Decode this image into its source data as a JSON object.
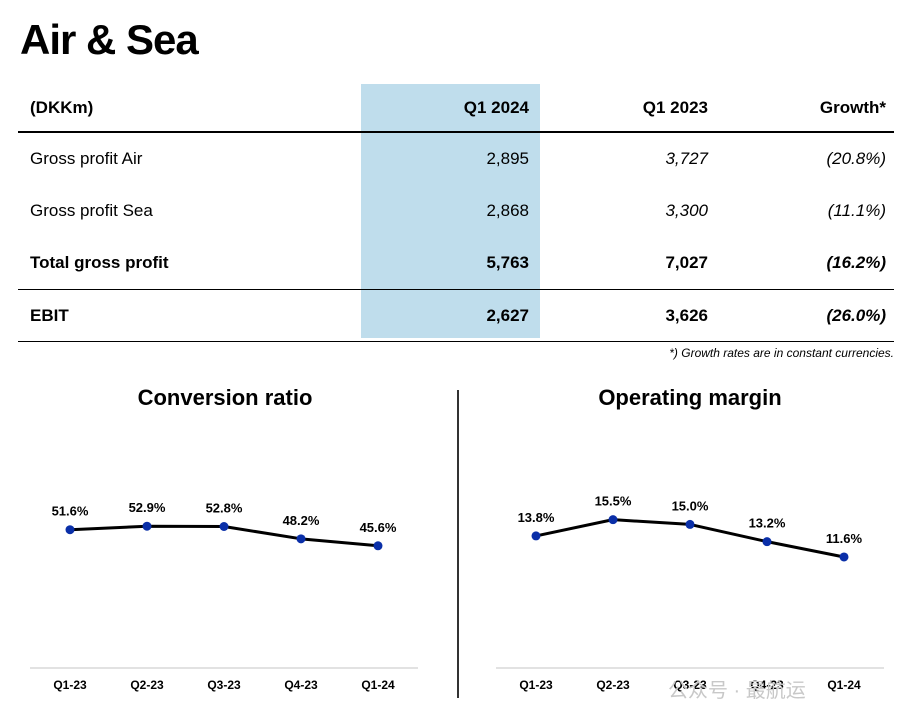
{
  "title": "Air & Sea",
  "table": {
    "headers": [
      "(DKKm)",
      "Q1 2024",
      "Q1 2023",
      "Growth*"
    ],
    "rows": [
      {
        "label": "Gross profit Air",
        "q1_2024": "2,895",
        "q1_2023": "3,727",
        "growth": "(20.8%)"
      },
      {
        "label": "Gross profit Sea",
        "q1_2024": "2,868",
        "q1_2023": "3,300",
        "growth": "(11.1%)"
      },
      {
        "label": "Total gross profit",
        "q1_2024": "5,763",
        "q1_2023": "7,027",
        "growth": "(16.2%)"
      },
      {
        "label": "EBIT",
        "q1_2024": "2,627",
        "q1_2023": "3,626",
        "growth": "(26.0%)"
      }
    ]
  },
  "footnote": "*) Growth rates are in constant currencies.",
  "highlight_color": "#bfddec",
  "watermark": "公众号 · 最航运",
  "chart_data": [
    {
      "type": "line",
      "title": "Conversion ratio",
      "categories": [
        "Q1-23",
        "Q2-23",
        "Q3-23",
        "Q4-23",
        "Q1-24"
      ],
      "values": [
        51.6,
        52.9,
        52.8,
        48.2,
        45.6
      ],
      "labels": [
        "51.6%",
        "52.9%",
        "52.8%",
        "48.2%",
        "45.6%"
      ],
      "ylim": [
        0,
        100
      ],
      "line_color": "#000000",
      "marker_color": "#0a2fa8",
      "grid": false
    },
    {
      "type": "line",
      "title": "Operating margin",
      "categories": [
        "Q1-23",
        "Q2-23",
        "Q3-23",
        "Q4-23",
        "Q1-24"
      ],
      "values": [
        13.8,
        15.5,
        15.0,
        13.2,
        11.6
      ],
      "labels": [
        "13.8%",
        "15.5%",
        "15.0%",
        "13.2%",
        "11.6%"
      ],
      "ylim": [
        0,
        28
      ],
      "line_color": "#000000",
      "marker_color": "#0a2fa8",
      "grid": false
    }
  ]
}
